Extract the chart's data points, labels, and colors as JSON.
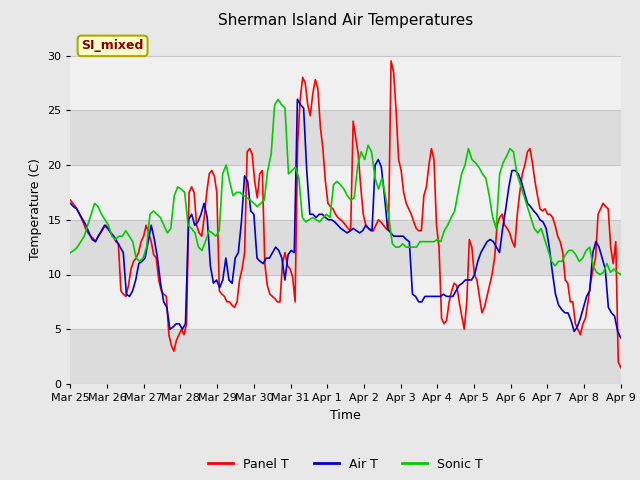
{
  "title": "Sherman Island Air Temperatures",
  "xlabel": "Time",
  "ylabel": "Temperature (C)",
  "ylim": [
    0,
    32
  ],
  "xlim": [
    0,
    15
  ],
  "annotation_text": "SI_mixed",
  "annotation_color": "#8B0000",
  "annotation_bg": "#FFFFCC",
  "annotation_border": "#AAAA00",
  "legend_labels": [
    "Panel T",
    "Air T",
    "Sonic T"
  ],
  "legend_colors": [
    "#FF0000",
    "#0000CC",
    "#00CC00"
  ],
  "x_tick_labels": [
    "Mar 25",
    "Mar 26",
    "Mar 27",
    "Mar 28",
    "Mar 29",
    "Mar 30",
    "Mar 31",
    "Apr 1",
    "Apr 2",
    "Apr 3",
    "Apr 4",
    "Apr 5",
    "Apr 6",
    "Apr 7",
    "Apr 8",
    "Apr 9"
  ],
  "x_tick_positions": [
    0,
    1,
    2,
    3,
    4,
    5,
    6,
    7,
    8,
    9,
    10,
    11,
    12,
    13,
    14,
    15
  ],
  "outer_bg": "#E8E8E8",
  "band_dark": "#DCDCDC",
  "band_light": "#F0F0F0",
  "grid_line_color": "#C8C8C8",
  "line_width": 1.2,
  "yticks": [
    0,
    5,
    10,
    15,
    20,
    25,
    30
  ],
  "panel_T": [
    16.8,
    16.5,
    16.2,
    15.8,
    15.3,
    14.8,
    14.2,
    13.8,
    13.5,
    13.3,
    13.0,
    13.5,
    13.8,
    14.2,
    14.5,
    14.2,
    13.8,
    13.5,
    13.0,
    12.8,
    8.5,
    8.2,
    8.0,
    9.0,
    10.5,
    11.2,
    11.5,
    12.0,
    13.0,
    13.5,
    14.5,
    13.8,
    13.0,
    11.8,
    11.5,
    9.5,
    8.5,
    8.2,
    8.0,
    4.5,
    3.5,
    3.0,
    4.0,
    4.5,
    5.0,
    4.5,
    5.5,
    17.5,
    18.0,
    17.5,
    14.5,
    13.8,
    13.5,
    15.2,
    17.5,
    19.2,
    19.5,
    19.0,
    17.5,
    8.5,
    8.2,
    8.0,
    7.5,
    7.5,
    7.2,
    7.0,
    7.5,
    9.5,
    10.5,
    12.0,
    21.2,
    21.5,
    21.0,
    18.5,
    17.0,
    19.2,
    19.5,
    11.0,
    9.0,
    8.2,
    8.0,
    7.8,
    7.5,
    7.5,
    11.0,
    12.0,
    10.8,
    10.5,
    9.8,
    7.5,
    22.0,
    26.0,
    28.0,
    27.5,
    25.5,
    24.5,
    26.5,
    27.8,
    27.0,
    23.5,
    21.5,
    18.5,
    16.5,
    16.2,
    16.0,
    15.5,
    15.2,
    15.0,
    14.8,
    14.5,
    14.2,
    14.0,
    24.0,
    22.5,
    21.0,
    18.0,
    15.5,
    14.5,
    14.2,
    14.0,
    14.0,
    14.5,
    15.0,
    14.8,
    14.5,
    14.2,
    14.0,
    29.5,
    28.5,
    25.0,
    20.5,
    19.5,
    17.5,
    16.5,
    16.0,
    15.5,
    14.8,
    14.2,
    14.0,
    14.0,
    17.2,
    18.0,
    20.0,
    21.5,
    20.5,
    14.5,
    12.5,
    6.0,
    5.5,
    5.8,
    7.5,
    8.5,
    9.2,
    9.0,
    7.5,
    6.2,
    5.0,
    7.5,
    13.2,
    12.5,
    10.0,
    9.5,
    8.0,
    6.5,
    7.0,
    8.0,
    9.0,
    10.0,
    11.5,
    14.5,
    15.2,
    15.5,
    14.5,
    14.2,
    13.8,
    13.0,
    12.5,
    15.5,
    17.5,
    19.2,
    20.0,
    21.2,
    21.5,
    20.2,
    18.5,
    17.2,
    16.0,
    15.8,
    16.0,
    15.5,
    15.5,
    15.2,
    14.5,
    13.5,
    13.0,
    12.0,
    9.5,
    9.2,
    7.5,
    7.5,
    5.5,
    5.0,
    4.5,
    5.5,
    6.0,
    7.5,
    9.2,
    10.5,
    11.5,
    15.5,
    16.0,
    16.5,
    16.2,
    16.0,
    12.5,
    11.0,
    13.0,
    2.0,
    1.5
  ],
  "air_T": [
    16.5,
    16.2,
    16.0,
    15.5,
    15.0,
    14.5,
    13.8,
    13.2,
    13.0,
    13.5,
    14.0,
    14.5,
    14.2,
    13.8,
    13.5,
    13.0,
    12.5,
    12.0,
    8.2,
    8.0,
    8.5,
    9.5,
    11.0,
    11.2,
    11.5,
    13.0,
    14.5,
    13.2,
    11.5,
    9.2,
    7.5,
    7.0,
    5.0,
    5.2,
    5.5,
    5.5,
    5.0,
    5.5,
    15.0,
    15.5,
    14.5,
    14.8,
    15.5,
    16.5,
    15.2,
    10.8,
    9.2,
    9.5,
    8.8,
    9.5,
    11.5,
    9.5,
    9.2,
    11.5,
    12.0,
    14.8,
    19.0,
    18.5,
    15.8,
    15.5,
    11.5,
    11.2,
    11.0,
    11.5,
    11.5,
    12.0,
    12.5,
    12.2,
    11.5,
    9.5,
    11.8,
    12.2,
    12.0,
    26.0,
    25.5,
    25.2,
    19.5,
    15.5,
    15.5,
    15.2,
    15.5,
    15.5,
    15.2,
    15.0,
    15.0,
    14.8,
    14.5,
    14.2,
    14.0,
    13.8,
    14.0,
    14.2,
    14.0,
    13.8,
    14.0,
    14.5,
    14.2,
    14.0,
    20.0,
    20.5,
    19.8,
    17.2,
    14.2,
    13.8,
    13.5,
    13.5,
    13.5,
    13.5,
    13.2,
    13.0,
    8.2,
    8.0,
    7.5,
    7.5,
    8.0,
    8.0,
    8.0,
    8.0,
    8.0,
    8.0,
    8.2,
    8.0,
    8.0,
    8.0,
    8.5,
    9.0,
    9.2,
    9.5,
    9.5,
    9.5,
    10.0,
    11.2,
    12.0,
    12.5,
    13.0,
    13.2,
    13.0,
    12.5,
    12.0,
    14.2,
    16.0,
    18.0,
    19.5,
    19.5,
    19.2,
    18.5,
    17.5,
    16.5,
    16.2,
    15.8,
    15.5,
    15.0,
    14.8,
    14.2,
    12.5,
    10.2,
    8.2,
    7.2,
    6.8,
    6.5,
    6.5,
    5.8,
    4.8,
    5.2,
    6.0,
    7.0,
    8.0,
    8.5,
    12.0,
    13.0,
    12.5,
    11.5,
    10.5,
    7.0,
    6.5,
    6.2,
    4.8,
    4.2
  ],
  "sonic_T": [
    12.0,
    12.2,
    12.5,
    13.0,
    13.5,
    14.5,
    15.5,
    16.5,
    16.2,
    15.5,
    15.0,
    14.5,
    13.5,
    13.2,
    13.5,
    13.5,
    14.0,
    13.5,
    13.0,
    11.5,
    11.2,
    11.5,
    12.5,
    15.5,
    15.8,
    15.5,
    15.2,
    14.5,
    13.8,
    14.2,
    17.2,
    18.0,
    17.8,
    17.5,
    14.5,
    14.2,
    13.8,
    12.5,
    12.2,
    13.0,
    14.0,
    13.8,
    13.5,
    14.0,
    19.2,
    20.0,
    18.5,
    17.2,
    17.5,
    17.5,
    17.2,
    17.0,
    16.8,
    16.5,
    16.2,
    16.5,
    16.8,
    19.5,
    21.0,
    25.5,
    26.0,
    25.5,
    25.2,
    19.2,
    19.5,
    19.8,
    18.8,
    15.2,
    14.8,
    15.0,
    15.2,
    15.0,
    14.8,
    15.2,
    15.5,
    15.2,
    18.2,
    18.5,
    18.2,
    17.8,
    17.2,
    16.8,
    17.0,
    20.0,
    21.2,
    20.5,
    21.8,
    21.2,
    18.8,
    17.8,
    18.8,
    17.2,
    15.2,
    12.8,
    12.5,
    12.5,
    12.8,
    12.5,
    12.5,
    12.5,
    12.5,
    13.0,
    13.0,
    13.0,
    13.0,
    13.0,
    13.2,
    13.0,
    14.0,
    14.5,
    15.2,
    15.8,
    17.5,
    19.2,
    20.0,
    21.5,
    20.5,
    20.2,
    19.8,
    19.2,
    18.8,
    17.2,
    15.2,
    14.2,
    19.2,
    20.2,
    20.8,
    21.5,
    21.2,
    19.2,
    18.2,
    17.2,
    16.2,
    15.2,
    14.2,
    13.8,
    14.2,
    13.2,
    12.2,
    11.2,
    10.8,
    11.2,
    11.2,
    11.8,
    12.2,
    12.2,
    11.8,
    11.2,
    11.5,
    12.2,
    12.5,
    10.8,
    10.2,
    10.0,
    10.2,
    11.0,
    10.2,
    10.5,
    10.2,
    10.0
  ]
}
